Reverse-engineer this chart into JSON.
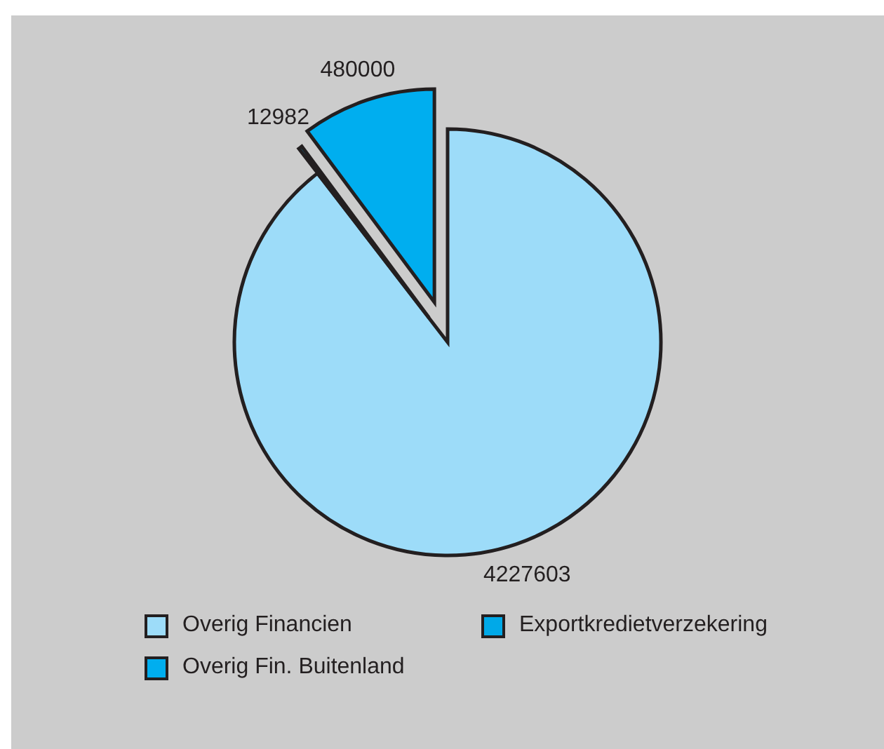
{
  "chart_data": {
    "type": "pie",
    "categories": [
      "Overig Financien",
      "Exportkredietverzekering",
      "Overig Fin. Buitenland"
    ],
    "values": [
      4227603,
      12982,
      480000
    ],
    "colors": [
      "#9ddcf9",
      "#00a9e8",
      "#00aeef"
    ],
    "data_labels": true,
    "legend": "bottom"
  }
}
